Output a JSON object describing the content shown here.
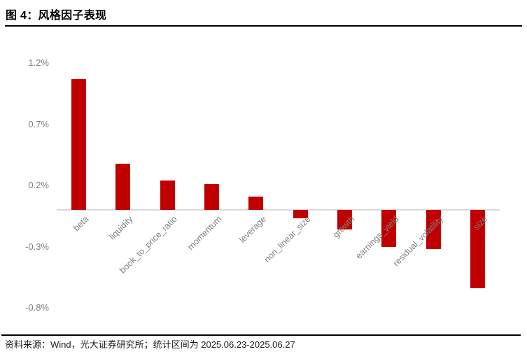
{
  "title": "图 4：风格因子表现",
  "source_note": "资料来源：Wind，光大证券研究所；统计区间为 2025.06.23-2025.06.27",
  "colors": {
    "bar": "#c00000",
    "axis_line": "#d9d9d9",
    "tick_label": "#7f7f7f",
    "title_text": "#000000",
    "rule": "#000000",
    "source_text": "#1a1a1a"
  },
  "chart_data": {
    "type": "bar",
    "title": "风格因子表现",
    "categories": [
      "beta",
      "liquidity",
      "book_to_price_ratio",
      "momentum",
      "leverage",
      "non_linear_size",
      "growth",
      "earnings_yield",
      "residual_volatility",
      "size"
    ],
    "values": [
      1.07,
      0.38,
      0.24,
      0.21,
      0.11,
      -0.07,
      -0.16,
      -0.3,
      -0.32,
      -0.64
    ],
    "unit": "%",
    "yticks": [
      {
        "label": "1.2%",
        "value": 1.2
      },
      {
        "label": "0.7%",
        "value": 0.7
      },
      {
        "label": "0.2%",
        "value": 0.2
      },
      {
        "label": "-0.3%",
        "value": -0.3
      },
      {
        "label": "-0.8%",
        "value": -0.8
      }
    ],
    "ylim": [
      -0.95,
      1.25
    ],
    "xlabel": "",
    "ylabel": "",
    "grid": false,
    "legend": false,
    "bar_color": "#c00000"
  }
}
